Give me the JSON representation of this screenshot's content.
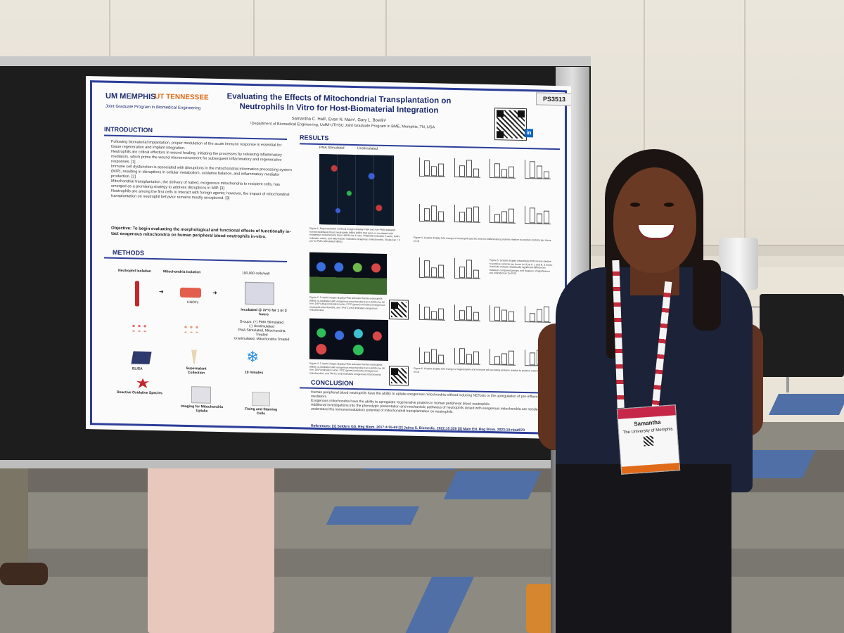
{
  "scene": "Person standing beside a scientific research poster at a conference",
  "poster": {
    "board_number": "PS3513",
    "logo_left": "MEMPHIS",
    "logo_right": "TENNESSEE",
    "joint_program": "Joint Graduate Program in Biomedical Engineering",
    "title": "Evaluating the Effects of Mitochondrial Transplantation on Neutrophils In Vitro for Host-Biomaterial Integration",
    "authors": "Samantha C. Hall¹, Evan N. Main¹, Gary L. Bowlin¹",
    "department": "¹Department of Biomedical Engineering, UofM-UTHSC Joint Graduate Program in BME, Memphis, TN, USA",
    "sections": {
      "introduction": "INTRODUCTION",
      "results": "RESULTS",
      "methods": "METHODS",
      "conclusion": "CONCLUSION"
    },
    "intro_bullets": [
      "Following biomaterial implantation, proper modulation of the acute immune response is essential for tissue regeneration and implant integration.",
      "Neutrophils are critical effectors in wound healing, initiating the processes by releasing inflammatory mediators, which prime the wound microenvironment for subsequent inflammatory and regenerative responses. [1]",
      "Immune cell dysfunction is associated with disruptions in the mitochondrial information processing system (MIP), resulting in disruptions in cellular metabolism, oxidative balance, and inflammatory mediator production. [2]",
      "Mitochondrial transplantation, the delivery of naked, exogenous mitochondria to recipient cells, has emerged as a promising strategy to address disruptions in MIP. [3]",
      "Neutrophils are among the first cells to interact with foreign agents; however, the impact of mitochondrial transplantation on neutrophil behavior remains mostly unexplored. [3]"
    ],
    "objective": "Objective: To begin evaluating the morphological and functional effects of functionally in-tact exogenous mitochondria on human peripheral blood neutrophils in-vitro.",
    "methods": {
      "neutrophil_isolation": "Neutrophil Isolation",
      "mito_isolation": "Mitochondria Isolation",
      "cells_per_well": "100,000 cells/well",
      "hhdf": "HHDFs",
      "incubated": "Incubated @ 37°C for 1 or 3 hours",
      "groups": "Groups:",
      "group_list": "(+) PMA Stimulated\n(-) Unstimulated\nPMA Stimulated, Mitochondria Treated\nUnstimulated, Mitochondria Treated",
      "elisa": "ELISA",
      "supernatant": "Supernatant Collection",
      "minutes": "10 minutes",
      "ros": "Reactive Oxidative Species",
      "imaging": "Imaging for Mitochondria Uptake",
      "fixing": "Fixing and Staining Cells"
    },
    "results": {
      "micro_header_left": "PMA Stimulated",
      "micro_header_right": "Unstimulated",
      "fig1_caption": "Figure 1. Representative confocal images display PMA and non-PMA activated human peripheral blood neutrophils (hBN) (hBN) that were co-incubated with exogenous mitochondria from HHDFs for 1 hour. Phalloidin indicates F-actin, DAPI indicates nuclei, and MitoTracker indicates exogenous mitochondria. (Scale bar = 5 µm for PMA Stimulated hBNs)",
      "fig2_caption": "Figure 2. Z-stack images display PMA activated human neutrophils (hBN) co-incubated with exogenous mitochondria from HHDFs for 30 min. DAPI (blue) indicates nuclei, FITC (green) indicates endogenous neutrophil mitochondria, and TRITC (red) indicates exogenous mitochondria.",
      "fig3_caption": "Figure 3. Z-stack images display PMA activated human neutrophils (hBN) co-incubated with exogenous mitochondria from HHDFs for 30 min. DAPI indicates nuclei, FITC (green) indicates endogenous mitochondria, and TRITC (red) indicates exogenous mitochondria.",
      "fig4_caption": "Figure 4. Graphs display fold change of neutrophil specific and pro-inflammatory proteins relative to positive controls per donor (n=3)",
      "fig5_caption": "Figure 5. Graphs display intracellular ROS levels relative to positive controls per donor (n=3) at A. 1 and B. 3 hours. Asterisks indicate statistically significant differences between compared groups, and degrees of significance are indicated as *p<0.05.",
      "fig6_caption": "Figure 6. Graphs display fold change of regenerative and immune cell recruiting proteins relative to positive controls per donor (n=3)"
    },
    "conclusion_bullets": [
      "Human peripheral blood neutrophils have the ability to uptake exogenous mitochondria without inducing NETosis or the upregulation of pro-inflammatory mediators.",
      "Exogenous mitochondria have the ability to upregulate regenerative proteins in human peripheral blood neutrophils.",
      "Additional investigations into the phenotypic presentation and mechanistic pathways of neutrophils dosed with exogenous mitochondria are needed to further understand the immunomodulatory potential of mitochondrial transplantation on neutrophils."
    ],
    "references": "References: [1] Selders GS. Reg Biom. 2017;4:55-68 [2] Jativa S. Biomedic. 2022;10:329 [3] Main EN. Reg Biom. 2023;10:rbad070"
  },
  "badge": {
    "name": "Samantha",
    "subtitle": "The University of Memphis"
  }
}
